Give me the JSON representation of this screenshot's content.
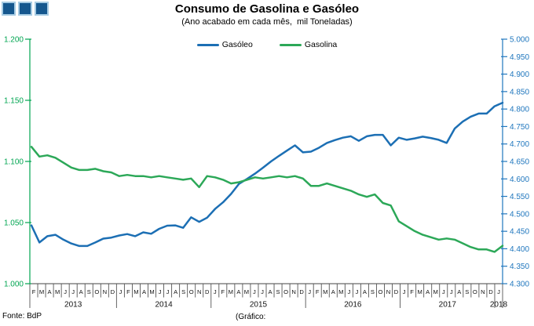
{
  "title": "Consumo de Gasolina e Gasóleo",
  "subtitle": "(Ano acabado em cada mês,  mil Toneladas)",
  "legend": [
    {
      "label": "Gasóleo",
      "color": "#1C6FB4"
    },
    {
      "label": "Gasolina",
      "color": "#2CA858"
    }
  ],
  "footer": {
    "source": "Fonte: BdP",
    "credit": "(Gráfico:"
  },
  "logo": {
    "name": "three-squares-logo",
    "fill": "#15578E",
    "border": "#A6CBE3"
  },
  "chart_data": {
    "type": "line",
    "title": "Consumo de Gasolina e Gasóleo",
    "subtitle": "(Ano acabado em cada mês, mil Toneladas)",
    "x_unit": "month",
    "x_range": "Fev 2013 - Jan 2018",
    "grid": false,
    "legend_position": "top-center",
    "month_letters": [
      "F",
      "M",
      "A",
      "M",
      "J",
      "J",
      "A",
      "S",
      "O",
      "N",
      "D",
      "J",
      "F",
      "M",
      "A",
      "M",
      "J",
      "J",
      "A",
      "S",
      "O",
      "N",
      "D",
      "J",
      "F",
      "M",
      "A",
      "M",
      "J",
      "J",
      "A",
      "S",
      "O",
      "N",
      "D",
      "J",
      "F",
      "M",
      "A",
      "M",
      "J",
      "J",
      "A",
      "S",
      "O",
      "N",
      "D",
      "J",
      "F",
      "M",
      "A",
      "M",
      "J",
      "J",
      "A",
      "S",
      "O",
      "N",
      "D",
      "J"
    ],
    "year_groups": [
      {
        "label": "2013",
        "months": 11
      },
      {
        "label": "2014",
        "months": 12
      },
      {
        "label": "2015",
        "months": 12
      },
      {
        "label": "2016",
        "months": 12
      },
      {
        "label": "2017",
        "months": 12
      },
      {
        "label": "2018",
        "months": 1
      }
    ],
    "axes": {
      "left": {
        "min": 1.0,
        "max": 1.2,
        "step": 0.05,
        "color": "#00A551",
        "tick_labels": [
          "1.200",
          "1.150",
          "1.100",
          "1.050",
          "1.000"
        ]
      },
      "right": {
        "min": 4.3,
        "max": 5.0,
        "step": 0.05,
        "color": "#2077BE",
        "tick_labels": [
          "5.000",
          "4.950",
          "4.900",
          "4.850",
          "4.800",
          "4.750",
          "4.700",
          "4.650",
          "4.600",
          "4.550",
          "4.500",
          "4.450",
          "4.400",
          "4.350",
          "4.300"
        ]
      }
    },
    "series": [
      {
        "name": "Gasóleo",
        "axis": "right",
        "color": "#1C6FB4",
        "values": [
          4.467,
          4.418,
          4.436,
          4.44,
          4.426,
          4.415,
          4.408,
          4.408,
          4.418,
          4.429,
          4.432,
          4.438,
          4.442,
          4.436,
          4.447,
          4.443,
          4.457,
          4.466,
          4.467,
          4.46,
          4.49,
          4.477,
          4.489,
          4.514,
          4.533,
          4.557,
          4.586,
          4.6,
          4.615,
          4.632,
          4.65,
          4.666,
          4.681,
          4.696,
          4.676,
          4.678,
          4.689,
          4.703,
          4.711,
          4.718,
          4.722,
          4.709,
          4.722,
          4.726,
          4.726,
          4.696,
          4.718,
          4.712,
          4.716,
          4.721,
          4.717,
          4.712,
          4.703,
          4.744,
          4.764,
          4.778,
          4.787,
          4.787,
          4.808,
          4.818
        ]
      },
      {
        "name": "Gasolina",
        "axis": "left",
        "color": "#2CA858",
        "values": [
          1.112,
          1.104,
          1.105,
          1.103,
          1.099,
          1.095,
          1.093,
          1.093,
          1.094,
          1.092,
          1.091,
          1.088,
          1.089,
          1.088,
          1.088,
          1.087,
          1.088,
          1.087,
          1.086,
          1.085,
          1.086,
          1.079,
          1.088,
          1.087,
          1.085,
          1.082,
          1.083,
          1.085,
          1.087,
          1.086,
          1.087,
          1.088,
          1.087,
          1.088,
          1.086,
          1.08,
          1.08,
          1.082,
          1.08,
          1.078,
          1.076,
          1.073,
          1.071,
          1.073,
          1.066,
          1.064,
          1.051,
          1.047,
          1.043,
          1.04,
          1.038,
          1.036,
          1.037,
          1.036,
          1.033,
          1.03,
          1.028,
          1.028,
          1.026,
          1.031
        ]
      }
    ]
  }
}
